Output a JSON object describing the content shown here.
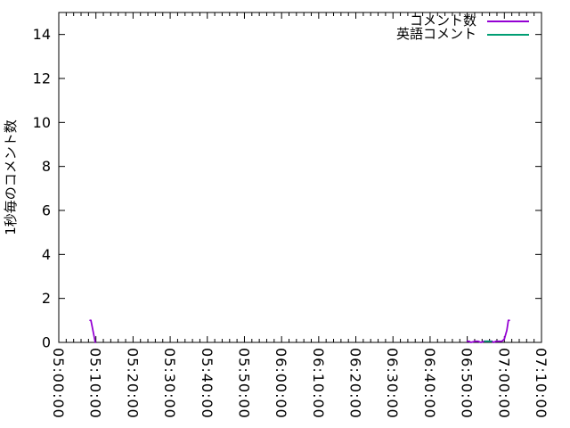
{
  "chart_data": {
    "type": "line",
    "title": "",
    "xlabel": "",
    "ylabel": "1秒毎のコメント数",
    "xlim": [
      "05:00:00",
      "07:10:00"
    ],
    "ylim": [
      0,
      15
    ],
    "y_ticks": [
      0,
      2,
      4,
      6,
      8,
      10,
      12,
      14
    ],
    "x_tick_labels": [
      "05:00:00",
      "05:10:00",
      "05:20:00",
      "05:30:00",
      "05:40:00",
      "05:50:00",
      "06:00:00",
      "06:10:00",
      "06:20:00",
      "06:30:00",
      "06:40:00",
      "06:50:00",
      "07:00:00",
      "07:10:00"
    ],
    "x_major_tick_interval_seconds": 600,
    "x_minor_tick_interval_seconds": 120,
    "grid": false,
    "legend_position": "top-right-inside",
    "series": [
      {
        "name": "コメント数",
        "color": "#9400D3",
        "segments": [
          [
            [
              "05:08:25",
              1
            ],
            [
              "05:08:40",
              1
            ],
            [
              "05:09:50",
              0
            ]
          ],
          [
            [
              "06:50:00",
              0.05
            ],
            [
              "06:50:30",
              0.05
            ],
            [
              "06:51:00",
              0
            ],
            [
              "06:52:00",
              0.05
            ],
            [
              "06:53:00",
              0.05
            ],
            [
              "06:53:40",
              0
            ],
            [
              "06:54:30",
              0.05
            ],
            [
              "06:56:40",
              0.05
            ],
            [
              "06:57:10",
              0
            ],
            [
              "06:57:40",
              0.05
            ],
            [
              "06:59:20",
              0.05
            ],
            [
              "07:00:00",
              0.15
            ],
            [
              "07:00:40",
              0.55
            ],
            [
              "07:01:05",
              1
            ],
            [
              "07:01:20",
              1
            ]
          ]
        ]
      },
      {
        "name": "英語コメント",
        "color": "#009E73",
        "segments": [
          [
            [
              "06:54:40",
              0.05
            ],
            [
              "06:56:30",
              0.05
            ]
          ]
        ]
      }
    ]
  },
  "colors": {
    "axis": "#000000",
    "background": "#ffffff",
    "text": "#000000"
  }
}
